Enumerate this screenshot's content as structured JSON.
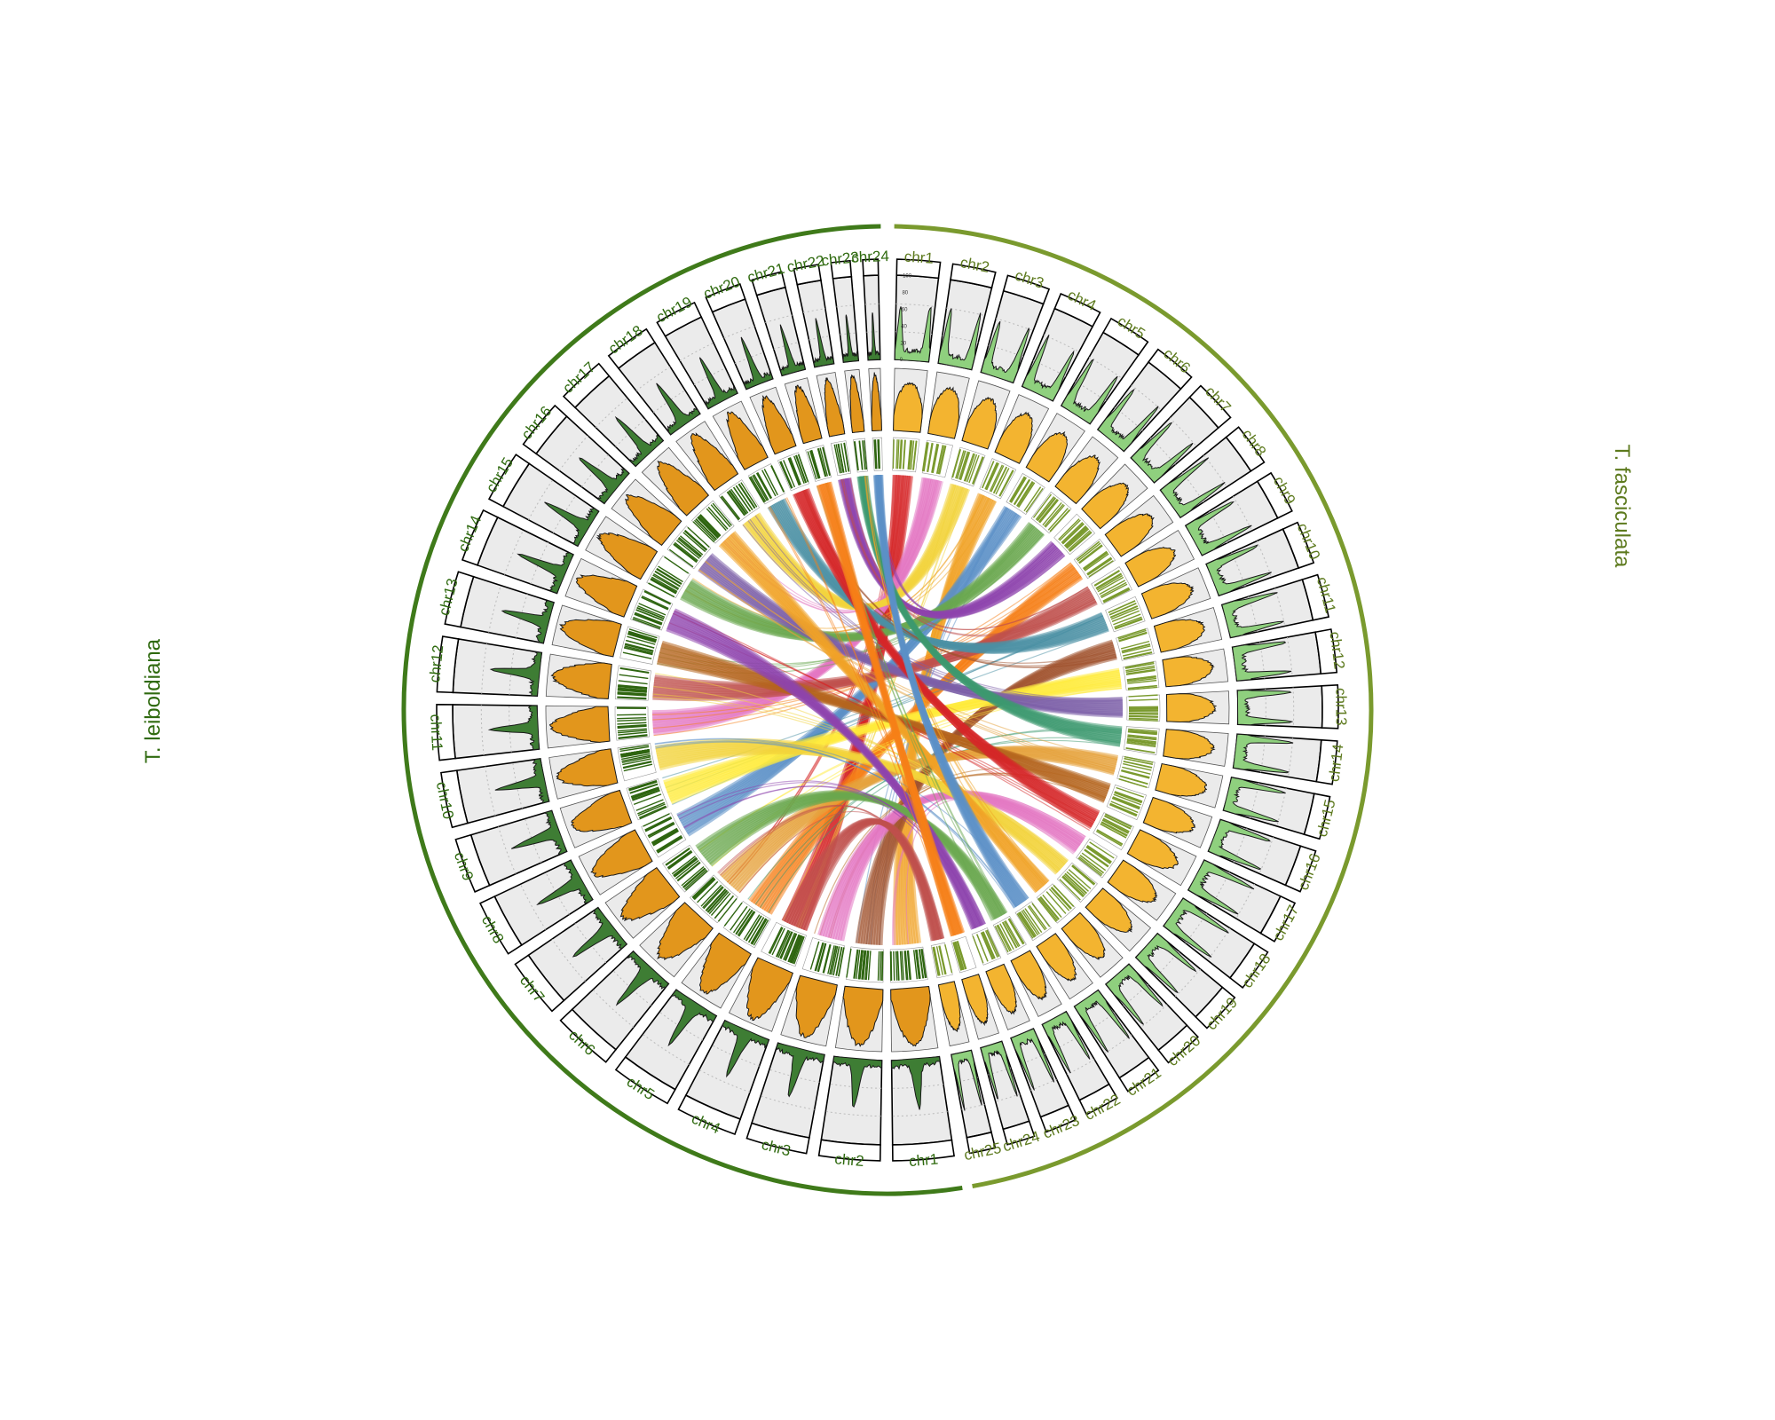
{
  "species": [
    {
      "name": "T. fasciculata",
      "color": "#7a9a2e",
      "label_color": "#5d7a1e",
      "chromosomes": [
        "chr1",
        "chr2",
        "chr3",
        "chr4",
        "chr5",
        "chr6",
        "chr7",
        "chr8",
        "chr9",
        "chr10",
        "chr11",
        "chr12",
        "chr13",
        "chr14",
        "chr15",
        "chr16",
        "chr17",
        "chr18",
        "chr19",
        "chr20",
        "chr21",
        "chr22",
        "chr23",
        "chr24",
        "chr25"
      ],
      "relative_sizes": [
        1.0,
        1.0,
        1.0,
        1.0,
        1.0,
        1.0,
        1.0,
        1.0,
        1.0,
        1.0,
        1.0,
        1.0,
        1.0,
        1.0,
        1.0,
        1.0,
        1.0,
        1.0,
        0.95,
        0.9,
        0.85,
        0.8,
        0.72,
        0.65,
        0.6
      ],
      "density_fill": "#f3b430",
      "repeat_fill": "#8fd07e",
      "gene_color": "#7a9a2e"
    },
    {
      "name": "T. leiboldiana",
      "color": "#3f7a1a",
      "label_color": "#2f6a0f",
      "chromosomes": [
        "chr1",
        "chr2",
        "chr3",
        "chr4",
        "chr5",
        "chr6",
        "chr7",
        "chr8",
        "chr9",
        "chr10",
        "chr11",
        "chr12",
        "chr13",
        "chr14",
        "chr15",
        "chr16",
        "chr17",
        "chr18",
        "chr19",
        "chr20",
        "chr21",
        "chr22",
        "chr23",
        "chr24"
      ],
      "relative_sizes": [
        1.6,
        1.6,
        1.6,
        1.6,
        1.6,
        1.6,
        1.55,
        1.5,
        1.45,
        1.45,
        1.45,
        1.45,
        1.4,
        1.4,
        1.35,
        1.3,
        1.25,
        1.2,
        1.1,
        0.95,
        0.8,
        0.65,
        0.5,
        0.4
      ],
      "density_fill": "#e2961c",
      "repeat_fill": "#3e7d34",
      "gene_color": "#2e6510"
    }
  ],
  "track_ticks": [
    "100",
    "80",
    "60",
    "40",
    "20",
    "0"
  ],
  "link_palette": [
    "#d62728",
    "#e377c2",
    "#f2d43b",
    "#f0a326",
    "#5b8fc7",
    "#6aa84f",
    "#8e44ad",
    "#f57f17",
    "#c0504d",
    "#4a90a4",
    "#a0522d",
    "#ffeb3b",
    "#7b5ea7",
    "#3d9970",
    "#e6a23c",
    "#b5651d"
  ]
}
